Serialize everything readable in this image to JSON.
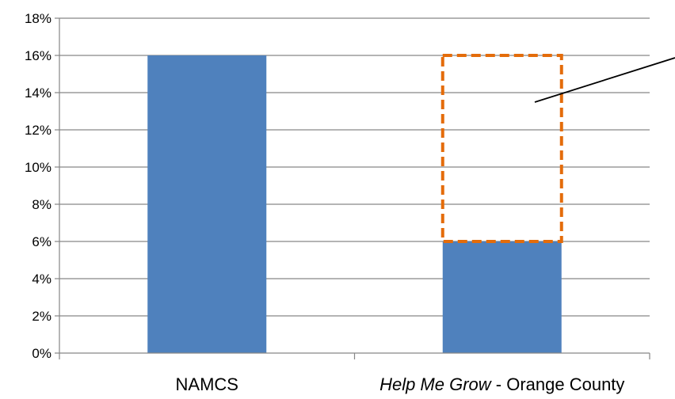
{
  "chart_data": {
    "type": "bar",
    "categories": [
      {
        "parts": [
          {
            "text": "NAMCS",
            "italic": false
          }
        ]
      },
      {
        "parts": [
          {
            "text": "Help Me Grow",
            "italic": true
          },
          {
            "text": " - Orange County",
            "italic": false
          }
        ]
      }
    ],
    "values": [
      0.16,
      0.06
    ],
    "highlight": {
      "category_index": 1,
      "from": 0.06,
      "to": 0.16,
      "style": "dashed-outline"
    },
    "yticks": [
      "0%",
      "2%",
      "4%",
      "6%",
      "8%",
      "10%",
      "12%",
      "14%",
      "16%",
      "18%"
    ],
    "ylim": [
      0,
      0.18
    ],
    "grid": true,
    "title": "",
    "xlabel": "",
    "ylabel": ""
  },
  "colors": {
    "bar": "#4f81bd",
    "highlight": "#e46c0a",
    "grid": "#868686",
    "axis": "#868686",
    "callout": "#000000"
  }
}
